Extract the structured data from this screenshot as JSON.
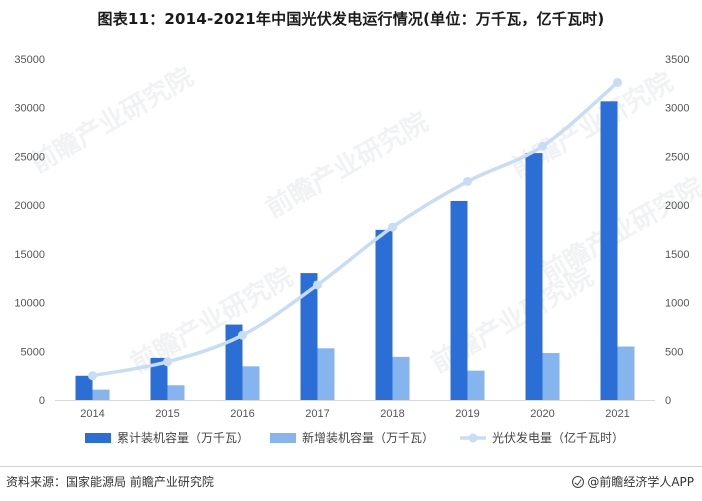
{
  "title": "图表11：2014-2021年中国光伏发电运行情况(单位：万千瓦，亿千瓦时)",
  "watermark": "前瞻产业研究院",
  "footer": {
    "source": "资料来源：国家能源局 前瞻产业研究院",
    "brand": "@前瞻经济学人APP",
    "brand_icon": "brand-logo-icon"
  },
  "colors": {
    "cumulative": "#2b6fd6",
    "new": "#86b4ef",
    "generation": "#c7ddf5",
    "axis_text": "#555555"
  },
  "chart_data": {
    "type": "bar",
    "title": "图表11：2014-2021年中国光伏发电运行情况(单位：万千瓦，亿千瓦时)",
    "categories": [
      "2014",
      "2015",
      "2016",
      "2017",
      "2018",
      "2019",
      "2020",
      "2021"
    ],
    "series": [
      {
        "name": "累计装机容量（万千瓦）",
        "type": "bar",
        "axis": "left",
        "values": [
          2486,
          4318,
          7742,
          13025,
          17463,
          20430,
          25343,
          30656
        ]
      },
      {
        "name": "新增装机容量（万千瓦）",
        "type": "bar",
        "axis": "left",
        "values": [
          1060,
          1513,
          3454,
          5306,
          4426,
          3011,
          4820,
          5488
        ]
      },
      {
        "name": "光伏发电量（亿千瓦时）",
        "type": "line",
        "axis": "right",
        "values": [
          250,
          392,
          665,
          1182,
          1775,
          2243,
          2605,
          3259
        ]
      }
    ],
    "y_left": {
      "min": 0,
      "max": 35000,
      "ticks": [
        0,
        5000,
        10000,
        15000,
        20000,
        25000,
        30000,
        35000
      ]
    },
    "y_right": {
      "min": 0,
      "max": 3500,
      "ticks": [
        0,
        500,
        1000,
        1500,
        2000,
        2500,
        3000,
        3500
      ]
    },
    "xlabel": "",
    "ylabel": "",
    "grid": false,
    "legend_position": "bottom"
  }
}
